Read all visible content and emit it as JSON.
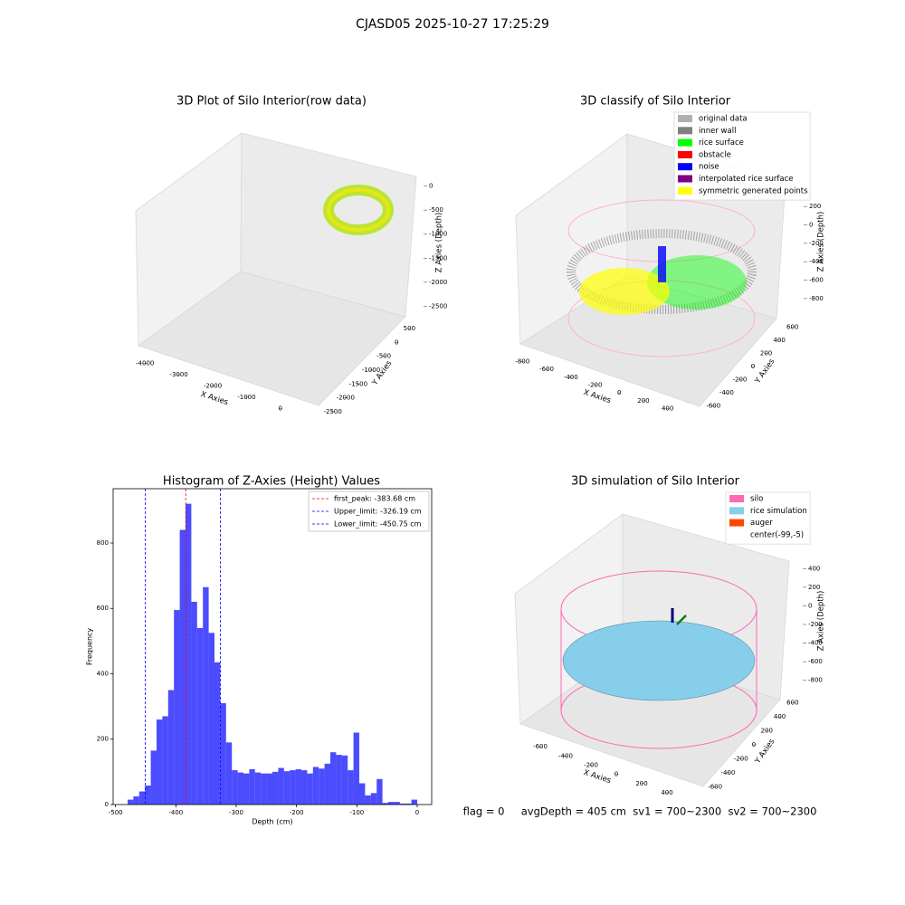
{
  "title": "CJASD05 2025-10-27 17:25:29",
  "footer": "flag = 0     avgDepth = 405 cm  sv1 = 700~2300  sv2 = 700~2300",
  "chart_data": [
    {
      "type": "scatter3d",
      "title": "3D Plot of Silo Interior(row data)",
      "xlabel": "X Axies",
      "ylabel": "Y Axies",
      "zlabel": "Z Axies (Depth)",
      "xlim": [
        -4300,
        300
      ],
      "xticks": [
        -4000,
        -3000,
        -2000,
        -1000,
        0
      ],
      "ylim": [
        -2700,
        700
      ],
      "yticks": [
        500,
        0,
        -500,
        -1000,
        -1500,
        -2000,
        -2500
      ],
      "zlim": [
        -2700,
        200
      ],
      "zticks": [
        0,
        -500,
        -1000,
        -1500,
        -2000,
        -2500
      ]
    },
    {
      "type": "scatter3d",
      "title": "3D classify of Silo Interior",
      "xlabel": "X Axies",
      "ylabel": "Y Axies",
      "zlabel": "Z Axies (Depth)",
      "xlim": [
        -900,
        500
      ],
      "xticks": [
        -800,
        -600,
        -400,
        -200,
        0,
        200,
        400
      ],
      "ylim": [
        -700,
        700
      ],
      "yticks": [
        -600,
        -400,
        -200,
        0,
        200,
        400,
        600
      ],
      "zlim": [
        -900,
        300
      ],
      "zticks": [
        200,
        0,
        -200,
        -400,
        -600,
        -800
      ],
      "legend": [
        {
          "name": "original data",
          "color": "#b0b0b0"
        },
        {
          "name": "inner wall",
          "color": "#808080"
        },
        {
          "name": "rice surface",
          "color": "#00ff00"
        },
        {
          "name": "obstacle",
          "color": "#ff0000"
        },
        {
          "name": "noise",
          "color": "#0000ff"
        },
        {
          "name": "interpolated rice surface",
          "color": "#800080"
        },
        {
          "name": "symmetric generated points",
          "color": "#ffff00"
        }
      ]
    },
    {
      "type": "histogram",
      "title": "Histogram of Z-Axies (Height) Values",
      "xlabel": "Depth (cm)",
      "ylabel": "Frequency",
      "color": "#0000ff",
      "bins": [
        -480,
        -470.4,
        -460.8,
        -451.2,
        -441.6,
        -432,
        -422.4,
        -412.8,
        -403.2,
        -393.6,
        -384,
        -374.4,
        -364.8,
        -355.2,
        -345.6,
        -336,
        -326.4,
        -316.8,
        -307.2,
        -297.6,
        -288,
        -278.4,
        -268.8,
        -259.2,
        -249.6,
        -240,
        -230.4,
        -220.8,
        -211.2,
        -201.6,
        -192,
        -182.4,
        -172.8,
        -163.2,
        -153.6,
        -144,
        -134.4,
        -124.8,
        -115.2,
        -105.6,
        -96,
        -86.4,
        -76.8,
        -67.2,
        -57.6,
        -48,
        -38.4,
        -28.8,
        -19.2,
        -9.6,
        0
      ],
      "values": [
        15,
        25,
        40,
        58,
        165,
        260,
        270,
        350,
        595,
        840,
        920,
        620,
        540,
        665,
        525,
        435,
        310,
        190,
        105,
        98,
        95,
        108,
        98,
        95,
        95,
        100,
        112,
        102,
        105,
        108,
        105,
        95,
        115,
        110,
        125,
        160,
        152,
        150,
        105,
        220,
        65,
        28,
        35,
        78,
        5,
        8,
        8,
        3,
        3,
        15
      ],
      "xlim": [
        -504,
        24
      ],
      "xticks": [
        -500,
        -400,
        -300,
        -200,
        -100,
        0
      ],
      "ylim": [
        0,
        966
      ],
      "yticks": [
        0,
        200,
        400,
        600,
        800
      ],
      "lines": [
        {
          "name": "first_peak: -383.68 cm",
          "value": -383.68,
          "color": "#ff0000"
        },
        {
          "name": "Upper_limit: -326.19 cm",
          "value": -326.19,
          "color": "#0000ff"
        },
        {
          "name": "Lower_limit: -450.75 cm",
          "value": -450.75,
          "color": "#0000ff"
        }
      ],
      "legend_position": "upper right"
    },
    {
      "type": "surface3d",
      "title": "3D simulation of Silo Interior",
      "xlabel": "X Axies",
      "ylabel": "Y Axies",
      "zlabel": "Z Axies (Depth)",
      "xlim": [
        -700,
        500
      ],
      "xticks": [
        -600,
        -400,
        -200,
        0,
        200,
        400
      ],
      "ylim": [
        -700,
        700
      ],
      "yticks": [
        -600,
        -400,
        -200,
        0,
        200,
        400,
        600
      ],
      "zlim": [
        -900,
        500
      ],
      "zticks": [
        400,
        200,
        0,
        -200,
        -400,
        -600,
        -800
      ],
      "legend": [
        {
          "name": "silo",
          "color": "#ff69b4"
        },
        {
          "name": "rice simulation",
          "color": "#87ceeb"
        },
        {
          "name": "auger",
          "color": "#ff4500"
        },
        {
          "name": "center(-99,-5)",
          "color": "#ffffff"
        }
      ]
    }
  ]
}
